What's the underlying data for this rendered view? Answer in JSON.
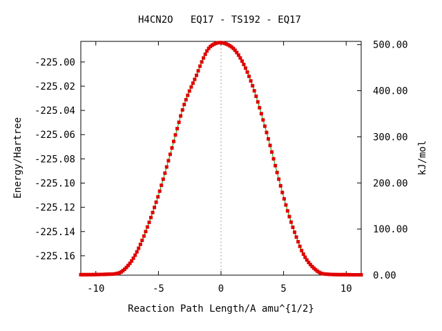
{
  "chart_data": {
    "type": "scatter",
    "title": "H4CN2O   EQ17 - TS192 - EQ17",
    "xlabel": "Reaction Path Length/A amu^{1/2}",
    "ylabel": "Energy/Hartree",
    "y2label": "kJ/mol",
    "xlim": [
      -11.2,
      11.2
    ],
    "ylim": [
      -225.176,
      -224.983
    ],
    "y2lim": [
      0,
      507
    ],
    "x_ticks": [
      -10,
      -5,
      0,
      5,
      10
    ],
    "x_tick_labels": [
      "-10",
      "-5",
      "0",
      "5",
      "10"
    ],
    "y_ticks": [
      -225.16,
      -225.14,
      -225.12,
      -225.1,
      -225.08,
      -225.06,
      -225.04,
      -225.02,
      -225.0
    ],
    "y_tick_labels": [
      "-225.16",
      "-225.14",
      "-225.12",
      "-225.10",
      "-225.08",
      "-225.06",
      "-225.04",
      "-225.02",
      "-225.00"
    ],
    "y2_ticks": [
      0,
      100,
      200,
      300,
      400,
      500
    ],
    "y2_tick_labels": [
      "0.00",
      "100.00",
      "200.00",
      "300.00",
      "400.00",
      "500.00"
    ],
    "vertical_reference_x": 0,
    "series": [
      {
        "color": "#e00000",
        "line_color": "#00a000",
        "x": [
          -11.2,
          -10.5,
          -10.0,
          -9.5,
          -9.0,
          -8.5,
          -8.0,
          -7.5,
          -7.0,
          -6.5,
          -6.0,
          -5.5,
          -5.0,
          -4.5,
          -4.0,
          -3.5,
          -3.0,
          -2.5,
          -2.0,
          -1.5,
          -1.0,
          -0.5,
          0.0,
          0.5,
          1.0,
          1.5,
          2.0,
          2.5,
          3.0,
          3.5,
          4.0,
          4.5,
          5.0,
          5.5,
          6.0,
          6.5,
          7.0,
          7.5,
          8.0,
          8.5,
          9.0,
          9.5,
          10.0,
          10.5,
          11.2
        ],
        "y": [
          -225.1756,
          -225.1756,
          -225.1755,
          -225.1754,
          -225.1752,
          -225.175,
          -225.1735,
          -225.169,
          -225.162,
          -225.152,
          -225.1395,
          -225.1255,
          -225.11,
          -225.0925,
          -225.074,
          -225.055,
          -225.037,
          -225.0235,
          -225.012,
          -224.999,
          -224.989,
          -224.985,
          -224.984,
          -224.9855,
          -224.989,
          -224.996,
          -225.006,
          -225.019,
          -225.035,
          -225.053,
          -225.072,
          -225.092,
          -225.1115,
          -225.129,
          -225.144,
          -225.157,
          -225.1655,
          -225.171,
          -225.1745,
          -225.1752,
          -225.1755,
          -225.1756,
          -225.1756,
          -225.1757,
          -225.1757
        ]
      }
    ]
  }
}
